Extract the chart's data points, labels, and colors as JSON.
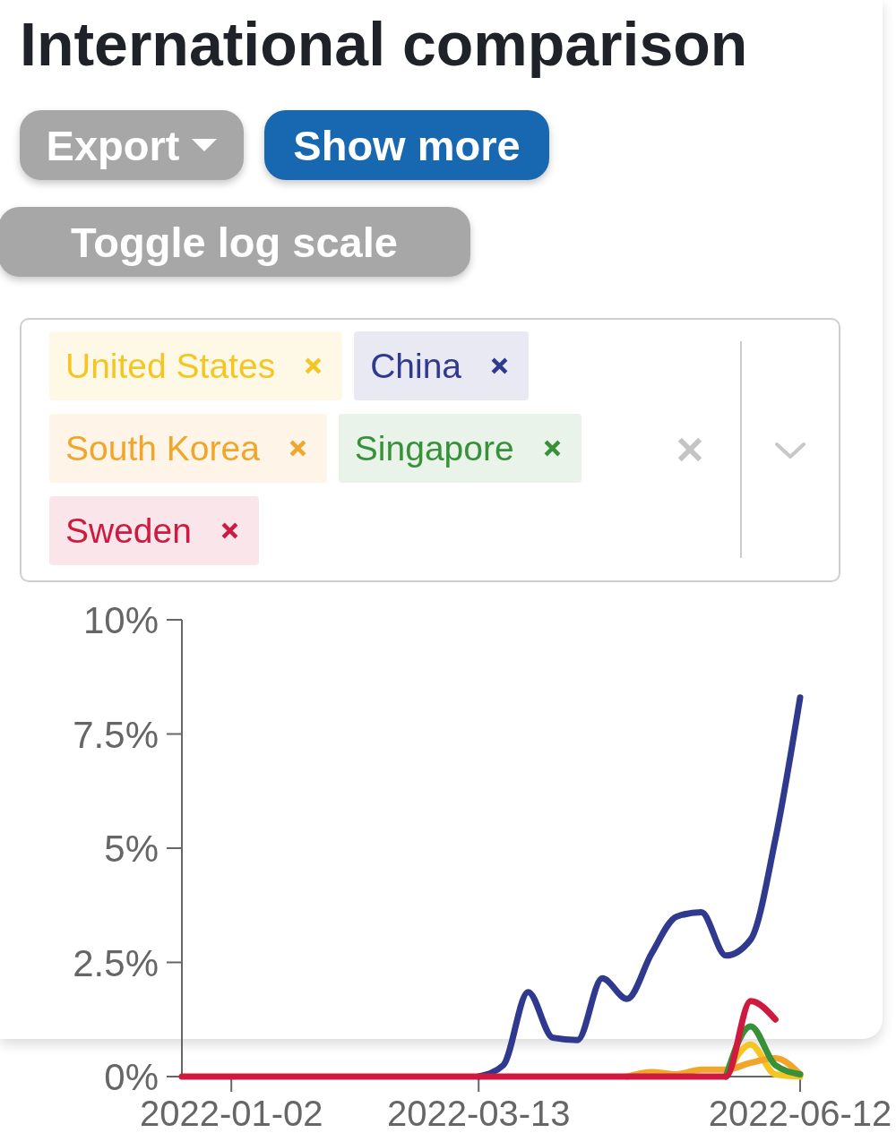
{
  "chart_data": {
    "type": "line",
    "title": "International comparison",
    "annotations": [
      "Export",
      "Show more",
      "Toggle log scale"
    ],
    "x": [
      "2021-12-19",
      "2021-12-26",
      "2022-01-02",
      "2022-01-09",
      "2022-01-16",
      "2022-01-23",
      "2022-01-30",
      "2022-02-06",
      "2022-02-13",
      "2022-02-20",
      "2022-02-27",
      "2022-03-06",
      "2022-03-13",
      "2022-03-20",
      "2022-03-27",
      "2022-04-03",
      "2022-04-10",
      "2022-04-17",
      "2022-04-24",
      "2022-05-01",
      "2022-05-08",
      "2022-05-15",
      "2022-05-22",
      "2022-05-29",
      "2022-06-05",
      "2022-06-12"
    ],
    "xlim": [
      "2021-12-19",
      "2022-06-12"
    ],
    "xticks": [
      "2022-01-02",
      "2022-03-13",
      "2022-06-12"
    ],
    "ylim": [
      0,
      10
    ],
    "yticks": [
      {
        "value": 0,
        "label": "0%"
      },
      {
        "value": 2.5,
        "label": "2.5%"
      },
      {
        "value": 5,
        "label": "5%"
      },
      {
        "value": 7.5,
        "label": "7.5%"
      },
      {
        "value": 10,
        "label": "10%"
      }
    ],
    "legend": "top",
    "series": [
      {
        "name": "United States",
        "color": "#f5c623",
        "values": [
          null,
          null,
          null,
          null,
          null,
          null,
          null,
          null,
          null,
          null,
          null,
          null,
          null,
          null,
          null,
          null,
          null,
          null,
          null,
          null,
          null,
          null,
          0,
          0.7,
          0.05,
          0
        ]
      },
      {
        "name": "China",
        "color": "#2f3a8f",
        "values": [
          null,
          null,
          null,
          null,
          null,
          null,
          null,
          null,
          null,
          null,
          null,
          null,
          0,
          0.25,
          1.85,
          0.85,
          0.8,
          2.15,
          1.7,
          2.7,
          3.5,
          3.6,
          2.65,
          3.0,
          5.2,
          8.3
        ]
      },
      {
        "name": "South Korea",
        "color": "#f2a52b",
        "values": [
          null,
          null,
          null,
          null,
          null,
          null,
          null,
          null,
          null,
          null,
          null,
          null,
          null,
          null,
          null,
          null,
          null,
          null,
          0,
          0.1,
          0.05,
          0.15,
          0.15,
          0.3,
          0.4,
          0.05
        ]
      },
      {
        "name": "Singapore",
        "color": "#379139",
        "values": [
          null,
          null,
          null,
          null,
          null,
          null,
          null,
          null,
          null,
          null,
          null,
          null,
          null,
          null,
          null,
          null,
          null,
          null,
          null,
          null,
          null,
          null,
          0,
          1.1,
          0.25,
          0.05
        ]
      },
      {
        "name": "Sweden",
        "color": "#d0193f",
        "values": [
          0,
          0,
          0,
          0,
          0,
          0,
          0,
          0,
          0,
          0,
          0,
          0,
          0,
          0,
          0,
          0,
          0,
          0,
          0,
          0,
          0,
          0,
          0,
          1.65,
          1.25,
          null
        ]
      }
    ]
  }
}
